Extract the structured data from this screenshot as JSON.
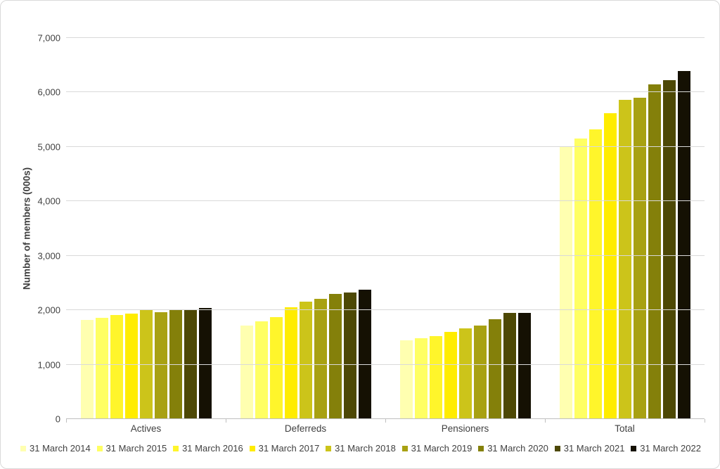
{
  "chart_data": {
    "type": "bar",
    "title": "",
    "xlabel": "",
    "ylabel": "Number of members (000s)",
    "ylim": [
      0,
      7000
    ],
    "ytick_step": 1000,
    "ytick_labels": [
      "0",
      "1,000",
      "2,000",
      "3,000",
      "4,000",
      "5,000",
      "6,000",
      "7,000"
    ],
    "grid": true,
    "legend_position": "bottom",
    "categories": [
      "Actives",
      "Deferreds",
      "Pensioners",
      "Total"
    ],
    "series": [
      {
        "name": "31 March 2014",
        "color": "#FFFFB0",
        "values": [
          1820,
          1720,
          1450,
          5000
        ]
      },
      {
        "name": "31 March 2015",
        "color": "#FFFF63",
        "values": [
          1860,
          1790,
          1480,
          5150
        ]
      },
      {
        "name": "31 March 2016",
        "color": "#FFF52B",
        "values": [
          1910,
          1870,
          1530,
          5320
        ]
      },
      {
        "name": "31 March 2017",
        "color": "#FFEC00",
        "values": [
          1940,
          2050,
          1600,
          5620
        ]
      },
      {
        "name": "31 March 2018",
        "color": "#CCC41A",
        "values": [
          2010,
          2160,
          1670,
          5860
        ]
      },
      {
        "name": "31 March 2019",
        "color": "#A8A112",
        "values": [
          1960,
          2210,
          1720,
          5900
        ]
      },
      {
        "name": "31 March 2020",
        "color": "#84800A",
        "values": [
          2020,
          2300,
          1830,
          6150
        ]
      },
      {
        "name": "31 March 2021",
        "color": "#4D4805",
        "values": [
          2010,
          2330,
          1950,
          6230
        ]
      },
      {
        "name": "31 March 2022",
        "color": "#151103",
        "values": [
          2040,
          2380,
          1950,
          6390
        ]
      }
    ],
    "axis_colors": {
      "gridline": "#d9d9d9",
      "baseline": "#bfbfbf",
      "text": "#404040"
    }
  }
}
